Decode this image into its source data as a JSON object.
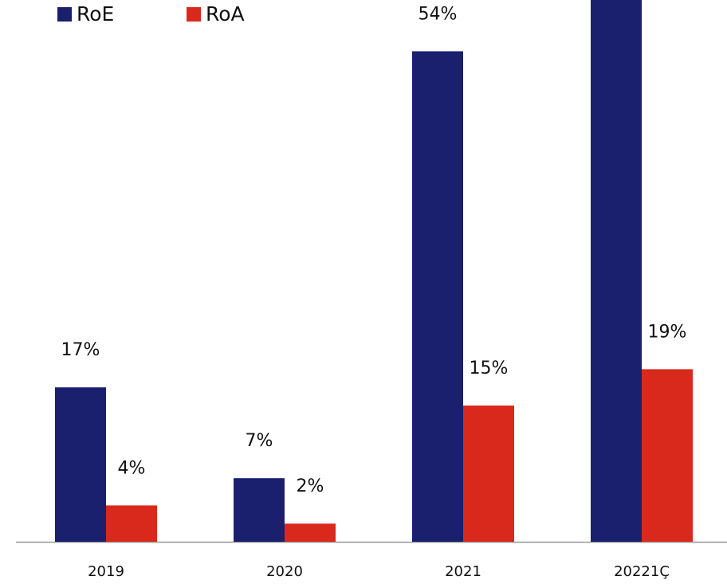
{
  "chart_data": {
    "type": "bar",
    "categories": [
      "2019",
      "2020",
      "2021",
      "20221Ç"
    ],
    "series": [
      {
        "name": "RoE",
        "color": "#1a1f6e",
        "values": [
          17,
          7,
          54,
          62
        ],
        "value_labels": [
          "17%",
          "7%",
          "54%",
          null
        ]
      },
      {
        "name": "RoA",
        "color": "#d9291c",
        "values": [
          4,
          2,
          15,
          19
        ],
        "value_labels": [
          "4%",
          "2%",
          "15%",
          "19%"
        ]
      }
    ],
    "legend": "top-left"
  }
}
